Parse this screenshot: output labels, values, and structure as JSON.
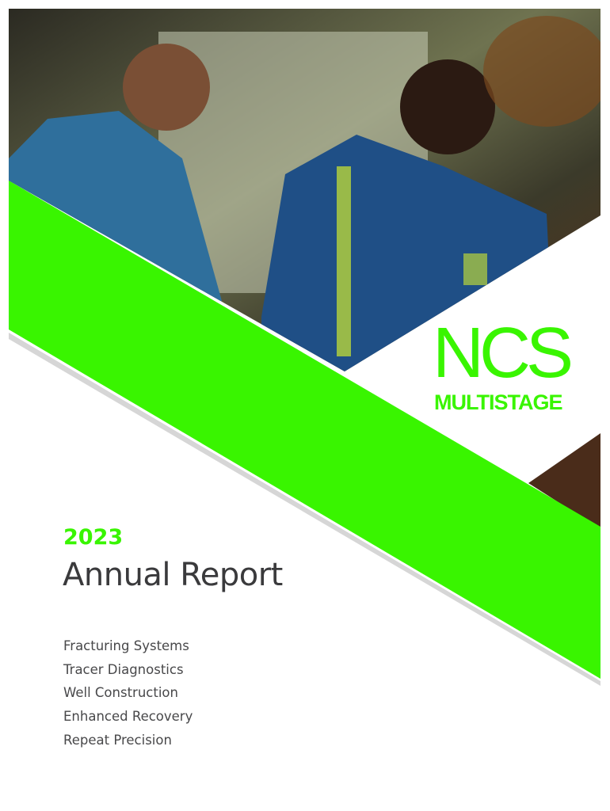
{
  "brand": {
    "name": "NCS",
    "sub": "MULTISTAGE"
  },
  "cover": {
    "year": "2023",
    "title": "Annual Report",
    "services": [
      "Fracturing Systems",
      "Tracer Diagnostics",
      "Well Construction",
      "Enhanced Recovery",
      "Repeat Precision"
    ]
  },
  "colors": {
    "accent": "#39f500",
    "text": "#3a3a3c"
  }
}
